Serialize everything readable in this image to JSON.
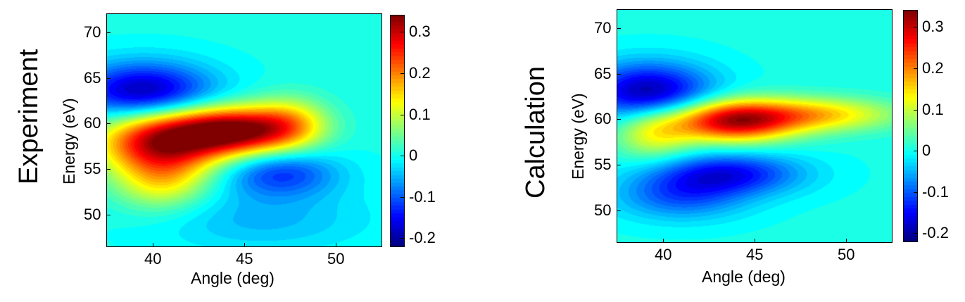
{
  "chart_data": [
    {
      "type": "heatmap",
      "panel_label": "Experiment",
      "xlabel": "Angle (deg)",
      "ylabel": "Energy (eV)",
      "x_ticks": [
        "40",
        "45",
        "50"
      ],
      "y_ticks": [
        "50",
        "55",
        "60",
        "65",
        "70"
      ],
      "x_tick_values": [
        40,
        45,
        50
      ],
      "y_tick_values": [
        50,
        55,
        60,
        65,
        70
      ],
      "xlim": [
        37.5,
        52.5
      ],
      "ylim": [
        46.5,
        72
      ],
      "colorbar": {
        "colormap": "jet",
        "range": [
          -0.22,
          0.34
        ],
        "ticks": [
          "0.3",
          "0.2",
          "0.1",
          "0",
          "-0.1",
          "-0.2"
        ],
        "tick_values": [
          0.3,
          0.2,
          0.1,
          0,
          -0.1,
          -0.2
        ]
      },
      "features": [
        {
          "x": 39.5,
          "y": 63.5,
          "value": -0.2,
          "sx": 2.6,
          "sy": 2.2
        },
        {
          "x": 40.5,
          "y": 58.0,
          "value": 0.3,
          "sx": 2.4,
          "sy": 2.4
        },
        {
          "x": 44.5,
          "y": 59.2,
          "value": 0.32,
          "sx": 2.3,
          "sy": 1.8
        },
        {
          "x": 47.5,
          "y": 60.0,
          "value": 0.12,
          "sx": 1.5,
          "sy": 2.0
        },
        {
          "x": 47.0,
          "y": 54.5,
          "value": -0.12,
          "sx": 2.2,
          "sy": 1.8
        },
        {
          "x": 46.0,
          "y": 49.5,
          "value": -0.05,
          "sx": 4.0,
          "sy": 2.5
        },
        {
          "x": 40.5,
          "y": 53.5,
          "value": 0.12,
          "sx": 1.8,
          "sy": 2.2
        }
      ]
    },
    {
      "type": "heatmap",
      "panel_label": "Calculation",
      "xlabel": "Angle (deg)",
      "ylabel": "Energy (eV)",
      "x_ticks": [
        "40",
        "45",
        "50"
      ],
      "y_ticks": [
        "50",
        "55",
        "60",
        "65",
        "70"
      ],
      "x_tick_values": [
        40,
        45,
        50
      ],
      "y_tick_values": [
        50,
        55,
        60,
        65,
        70
      ],
      "xlim": [
        37.5,
        52.5
      ],
      "ylim": [
        46.5,
        72
      ],
      "colorbar": {
        "colormap": "jet",
        "range": [
          -0.22,
          0.34
        ],
        "ticks": [
          "0.3",
          "0.2",
          "0.1",
          "0",
          "-0.1",
          "-0.2"
        ],
        "tick_values": [
          0.3,
          0.2,
          0.1,
          0,
          -0.1,
          -0.2
        ]
      },
      "features": [
        {
          "x": 39.2,
          "y": 63.0,
          "value": -0.2,
          "sx": 2.4,
          "sy": 2.2
        },
        {
          "x": 43.8,
          "y": 59.8,
          "value": 0.3,
          "sx": 2.4,
          "sy": 1.6
        },
        {
          "x": 48.5,
          "y": 60.5,
          "value": 0.15,
          "sx": 3.0,
          "sy": 1.3
        },
        {
          "x": 39.5,
          "y": 58.5,
          "value": 0.12,
          "sx": 1.5,
          "sy": 2.0
        },
        {
          "x": 43.5,
          "y": 54.0,
          "value": -0.15,
          "sx": 2.8,
          "sy": 1.6
        },
        {
          "x": 41.0,
          "y": 51.5,
          "value": -0.1,
          "sx": 2.5,
          "sy": 1.8
        }
      ]
    }
  ]
}
